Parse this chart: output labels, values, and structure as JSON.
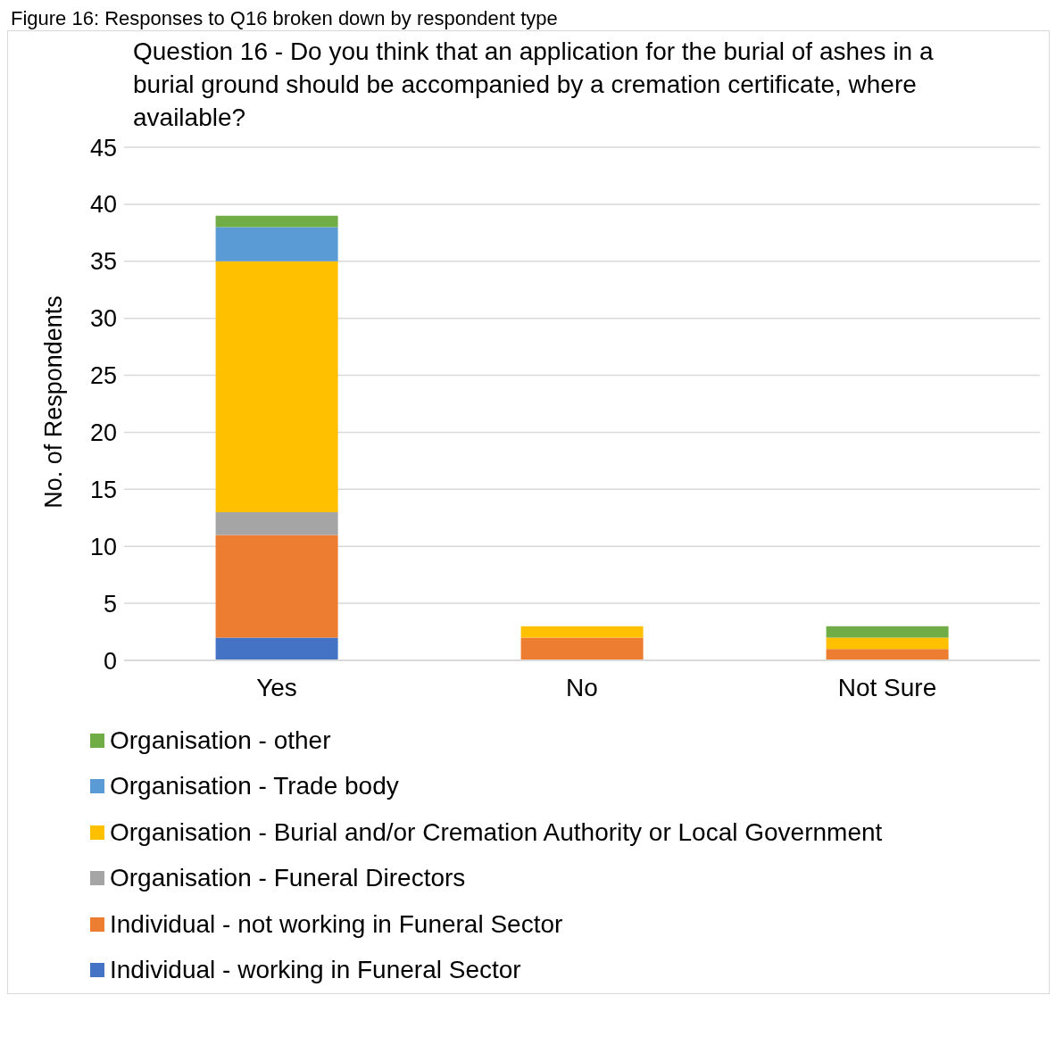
{
  "chart_data": {
    "type": "bar",
    "stacked": true,
    "title": "Question 16 - Do you think that an application for the burial of ashes in a burial ground should be accompanied by a cremation certificate, where available?",
    "annotations": [
      "Figure 16: Responses to Q16 broken down by respondent type"
    ],
    "ylabel": "No. of Respondents",
    "categories": [
      "Yes",
      "No",
      "Not Sure"
    ],
    "series": [
      {
        "name": "Individual - working in Funeral Sector",
        "color": "#4472c4",
        "values": [
          2,
          0,
          0
        ]
      },
      {
        "name": "Individual - not working in Funeral Sector",
        "color": "#ed7d31",
        "values": [
          9,
          2,
          1
        ]
      },
      {
        "name": "Organisation - Funeral Directors",
        "color": "#a5a5a5",
        "values": [
          2,
          0,
          0
        ]
      },
      {
        "name": "Organisation - Burial and/or Cremation Authority or Local Government",
        "color": "#ffc000",
        "values": [
          22,
          1,
          1
        ]
      },
      {
        "name": "Organisation - Trade body",
        "color": "#5b9bd5",
        "values": [
          3,
          0,
          0
        ]
      },
      {
        "name": "Organisation - other",
        "color": "#70ad47",
        "values": [
          1,
          0,
          1
        ]
      }
    ],
    "ylim": [
      0,
      45
    ],
    "yticks": [
      0,
      5,
      10,
      15,
      20,
      25,
      30,
      35,
      40,
      45
    ],
    "grid": "y",
    "legend": "bottom"
  }
}
